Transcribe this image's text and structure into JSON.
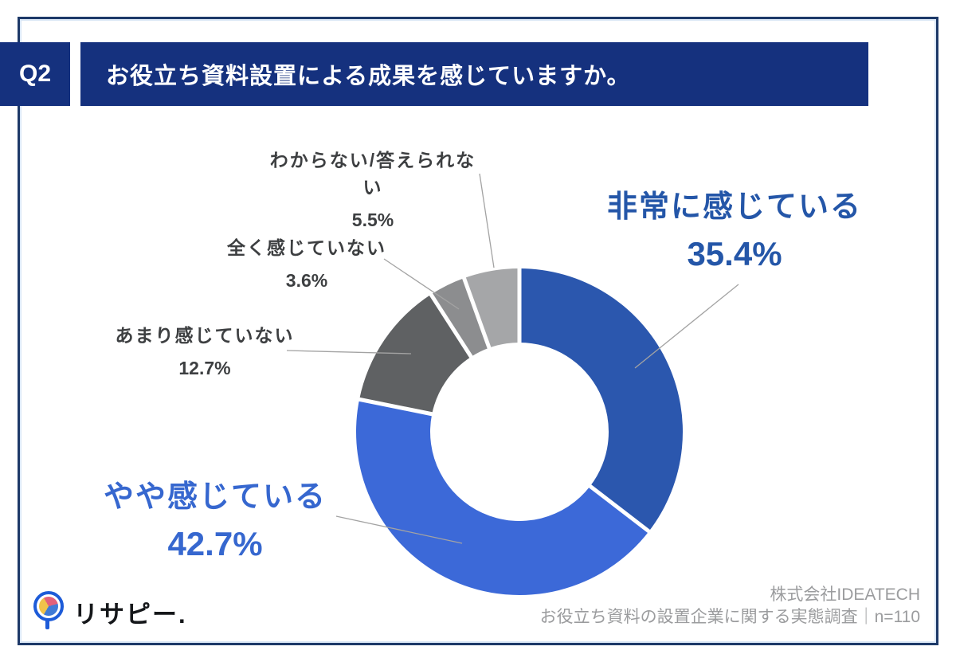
{
  "header": {
    "q_label": "Q2",
    "title": "お役立ち資料設置による成果を感じていますか。",
    "bar_color": "#15317e",
    "text_color": "#ffffff"
  },
  "chart_data": {
    "type": "pie",
    "subtype": "donut",
    "title": "お役立ち資料設置による成果を感じていますか。",
    "unit": "%",
    "start_angle_deg": 0,
    "clockwise": true,
    "inner_radius_ratio": 0.55,
    "legend_position": "outside-callouts",
    "series": [
      {
        "label": "非常に感じている",
        "value": 35.4,
        "value_label": "35.4%",
        "color": "#2b57ae",
        "label_color": "#2456a8"
      },
      {
        "label": "やや感じている",
        "value": 42.7,
        "value_label": "42.7%",
        "color": "#3c69d8",
        "label_color": "#3667cf"
      },
      {
        "label": "あまり感じていない",
        "value": 12.7,
        "value_label": "12.7%",
        "color": "#5f6163",
        "label_color": "#3d3f41"
      },
      {
        "label": "全く感じていない",
        "value": 3.6,
        "value_label": "3.6%",
        "color": "#8c8d8f",
        "label_color": "#3d3f41"
      },
      {
        "label": "わからない/答えられない",
        "value": 5.5,
        "value_label": "5.5%",
        "color": "#a5a6a8",
        "label_color": "#3d3f41"
      }
    ]
  },
  "footer": {
    "logo_text": "リサピー.",
    "company": "株式会社IDEATECH",
    "survey": "お役立ち資料の設置企業に関する実態調査｜n=110"
  }
}
